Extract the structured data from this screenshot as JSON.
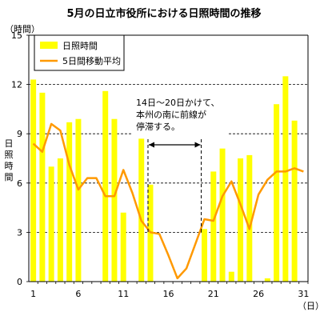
{
  "chart_data": {
    "type": "bar",
    "title": "5月の日立市役所における日照時間の推移",
    "ylabel_unit": "（時間）",
    "ylabel_vertical": [
      "日",
      "照",
      "時",
      "間"
    ],
    "xlabel_unit": "（日）",
    "ylim": [
      0,
      15
    ],
    "yticks": [
      0,
      3,
      6,
      9,
      12,
      15
    ],
    "xtick_labels": [
      "1",
      "6",
      "11",
      "16",
      "21",
      "26",
      "31"
    ],
    "xtick_days": [
      1,
      6,
      11,
      16,
      21,
      26,
      31
    ],
    "days": [
      1,
      2,
      3,
      4,
      5,
      6,
      7,
      8,
      9,
      10,
      11,
      12,
      13,
      14,
      15,
      16,
      17,
      18,
      19,
      20,
      21,
      22,
      23,
      24,
      25,
      26,
      27,
      28,
      29,
      30,
      31
    ],
    "series": [
      {
        "name": "日照時間",
        "kind": "bar",
        "color": "#ffff00",
        "values": [
          12.3,
          11.5,
          7.0,
          7.5,
          9.7,
          9.9,
          0.0,
          0.0,
          11.6,
          9.9,
          4.2,
          0.0,
          8.7,
          5.9,
          0.0,
          0.0,
          0.0,
          0.0,
          0.0,
          3.2,
          6.7,
          8.1,
          0.6,
          7.5,
          7.7,
          0.0,
          0.2,
          10.8,
          12.5,
          9.8,
          0.0
        ]
      },
      {
        "name": "5日間移動平均",
        "kind": "line",
        "color": "#ff9900",
        "values": [
          8.4,
          7.9,
          9.6,
          9.2,
          7.1,
          5.6,
          6.3,
          6.3,
          5.2,
          5.2,
          6.8,
          5.4,
          3.7,
          3.0,
          2.9,
          1.6,
          0.2,
          0.8,
          2.3,
          3.8,
          3.7,
          5.2,
          6.1,
          4.7,
          3.2,
          5.3,
          6.2,
          6.7,
          6.7,
          6.9,
          6.7
        ]
      }
    ],
    "grid": "horizontal-dashed",
    "legend_position": "top-left",
    "annotation": {
      "lines": [
        "14日～20日かけて、",
        "本州の南に前線が",
        "停滞する。"
      ],
      "span_days": [
        14,
        20
      ]
    }
  }
}
